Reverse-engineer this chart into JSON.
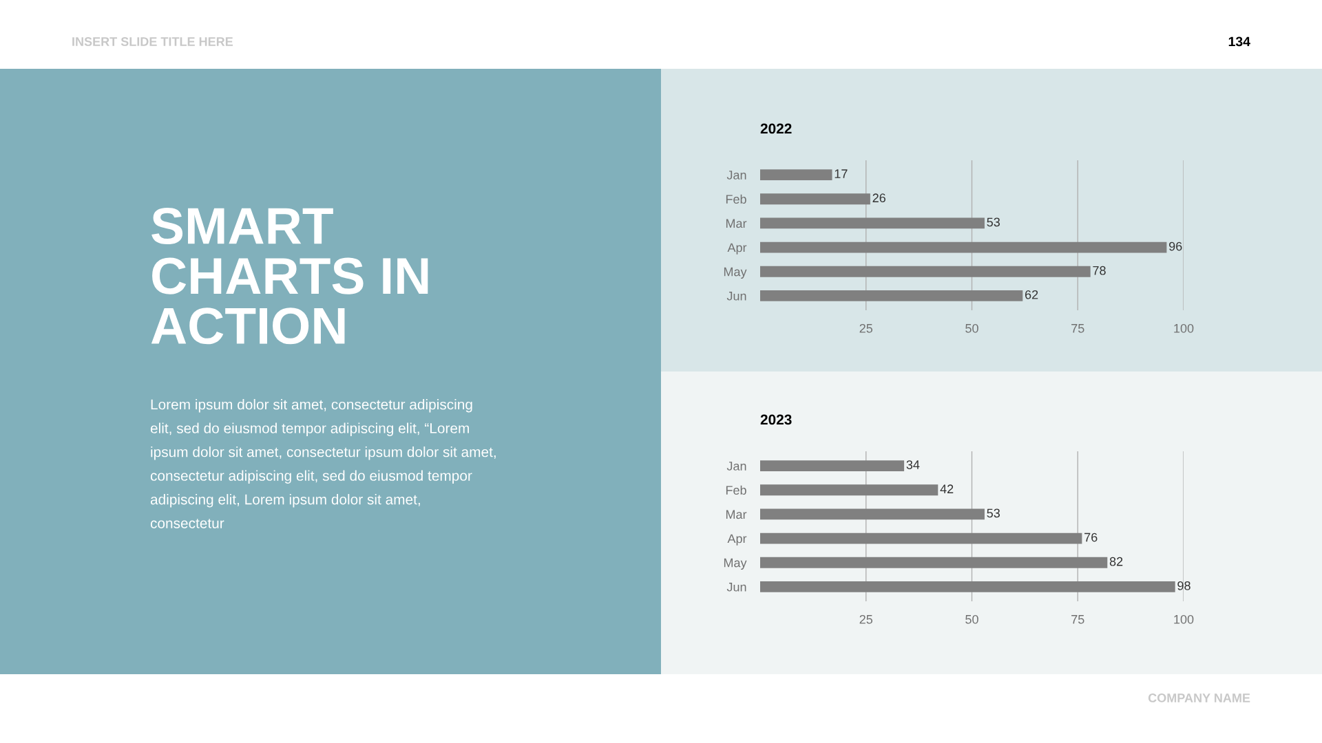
{
  "chart_data": [
    {
      "type": "other",
      "title": "SMART\nCHARTS IN\nACTION",
      "annotations": [
        "Lorem ipsum dolor sit amet, consectetur adipiscing\nelit, sed do eiusmod tempor adipiscing elit, “Lorem\nipsum dolor sit amet, consectetur ipsum dolor sit amet,\nconsectetur adipiscing elit, sed do eiusmod tempor\nadipiscing elit, Lorem ipsum dolor sit amet,\nconsectetur",
        "INSERT SLIDE TITLE HERE",
        "134",
        "COMPANY NAME"
      ]
    },
    {
      "type": "bar",
      "orientation": "horizontal",
      "title": "2022",
      "categories": [
        "Jan",
        "Feb",
        "Mar",
        "Apr",
        "May",
        "Jun"
      ],
      "values": [
        17,
        26,
        53,
        96,
        78,
        62
      ],
      "color": "#808080",
      "xlim": [
        0,
        100
      ],
      "xticks": [
        25,
        50,
        75,
        100
      ],
      "grid": "x",
      "data_labels": true
    },
    {
      "type": "bar",
      "orientation": "horizontal",
      "title": "2023",
      "categories": [
        "Jan",
        "Feb",
        "Mar",
        "Apr",
        "May",
        "Jun"
      ],
      "values": [
        34,
        42,
        53,
        76,
        82,
        98
      ],
      "color": "#808080",
      "xlim": [
        0,
        100
      ],
      "xticks": [
        25,
        50,
        75,
        100
      ],
      "grid": "x",
      "data_labels": true
    }
  ]
}
